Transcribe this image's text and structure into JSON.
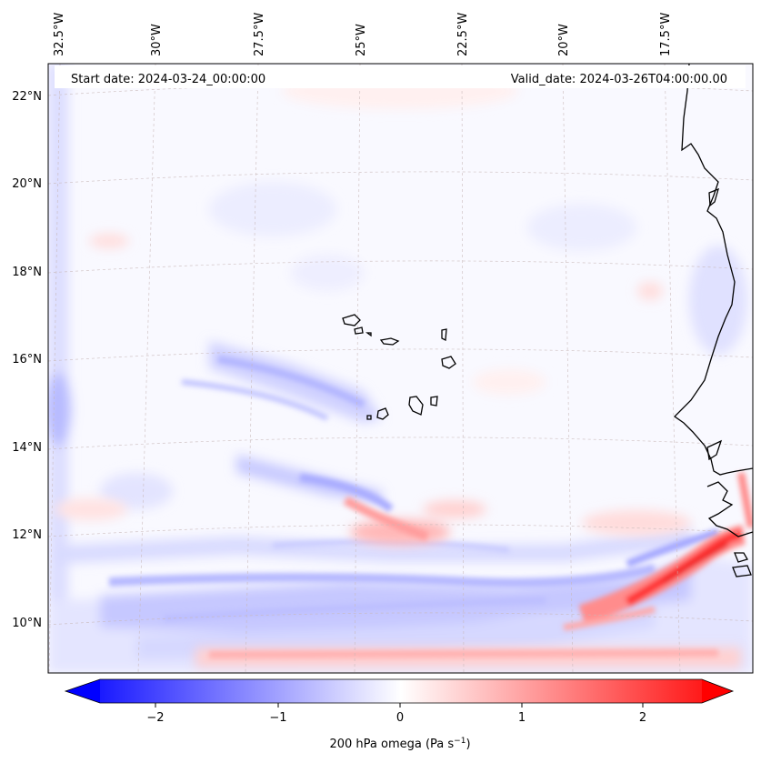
{
  "map": {
    "start_label": "Start date: 2024-03-24_00:00:00",
    "valid_label": "Valid_date: 2024-03-26T04:00:00.00",
    "lon_labels": [
      "32.5°W",
      "30°W",
      "27.5°W",
      "25°W",
      "22.5°W",
      "20°W",
      "17.5°W"
    ],
    "lat_labels": [
      "22°N",
      "20°N",
      "18°N",
      "16°N",
      "14°N",
      "12°N",
      "10°N"
    ],
    "field": "200 hPa omega",
    "colors": {
      "negative": "#0000ff",
      "zero": "#ffffff",
      "positive": "#ff0000",
      "coast": "#000000"
    }
  },
  "colorbar": {
    "tick_labels": [
      "−2",
      "−1",
      "0",
      "1",
      "2"
    ],
    "label_main": "200 hPa omega (Pa s",
    "label_exp": "−1",
    "label_close": ")",
    "range": [
      -2.5,
      2.5
    ]
  }
}
